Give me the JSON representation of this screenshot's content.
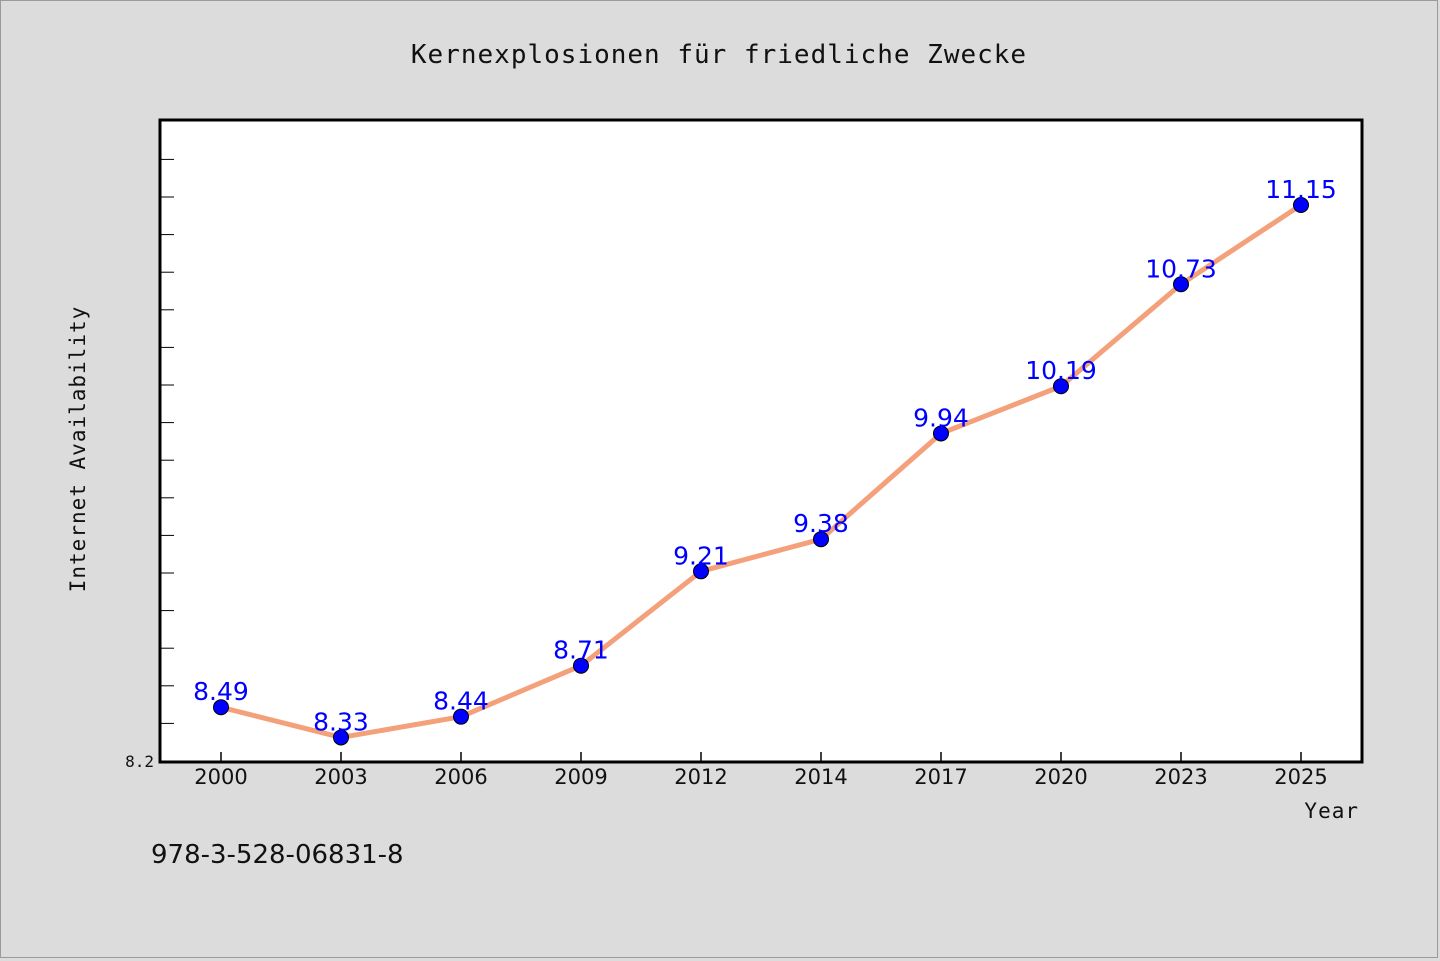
{
  "chart_data": {
    "type": "line",
    "title": "Kernexplosionen für friedliche Zwecke",
    "xlabel": "Year",
    "ylabel": "Internet Availability",
    "categories": [
      "2000",
      "2003",
      "2006",
      "2009",
      "2012",
      "2014",
      "2017",
      "2020",
      "2023",
      "2025"
    ],
    "series": [
      {
        "values": [
          8.49,
          8.33,
          8.44,
          8.71,
          9.21,
          9.38,
          9.94,
          10.19,
          10.73,
          11.15
        ],
        "line_color": "#f4a07a",
        "marker_color": "#0000ff"
      }
    ],
    "ylim": [
      8.2,
      11.6
    ],
    "ytick_labels": [
      "8.2"
    ],
    "data_labels_shown": true,
    "grid": false,
    "legend": "none"
  },
  "footer_text": "978-3-528-06831-8"
}
